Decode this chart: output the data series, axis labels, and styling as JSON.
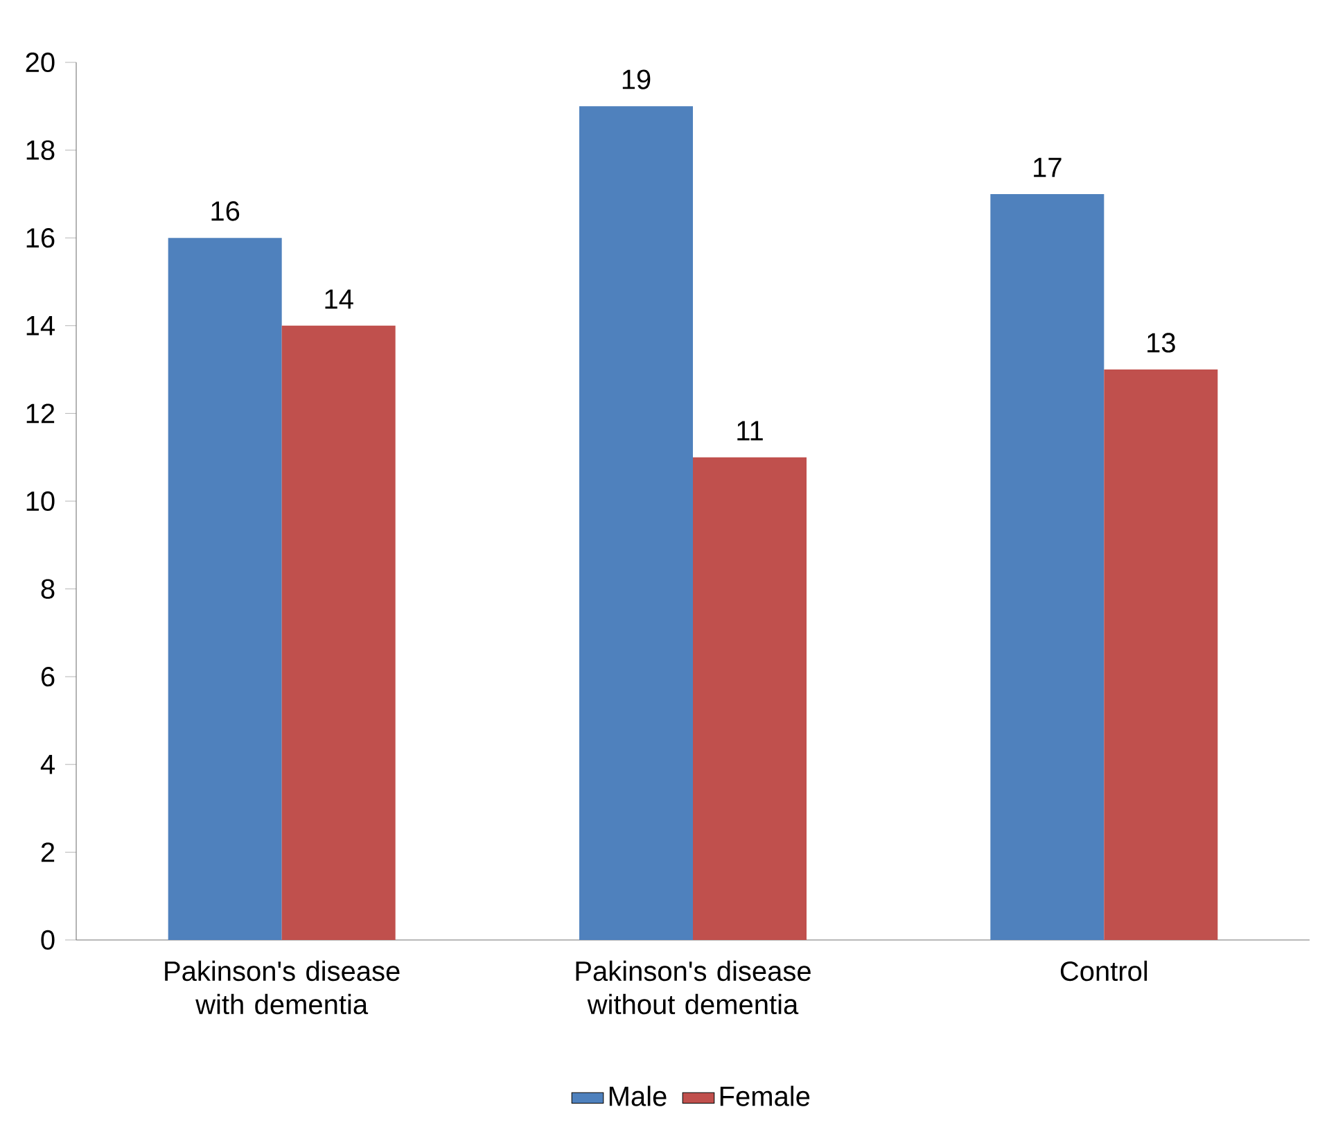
{
  "chart_data": {
    "type": "bar",
    "categories": [
      "Pakinson's disease with dementia",
      "Pakinson's disease without dementia",
      "Control"
    ],
    "series": [
      {
        "name": "Male",
        "color": "#4f81bd",
        "values": [
          16,
          19,
          17
        ]
      },
      {
        "name": "Female",
        "color": "#c0504d",
        "values": [
          14,
          11,
          13
        ]
      }
    ],
    "ylim": [
      0,
      20
    ],
    "yticks": [
      0,
      2,
      4,
      6,
      8,
      10,
      12,
      14,
      16,
      18,
      20
    ],
    "data_labels": true,
    "legend": "bottom",
    "grid": false
  }
}
